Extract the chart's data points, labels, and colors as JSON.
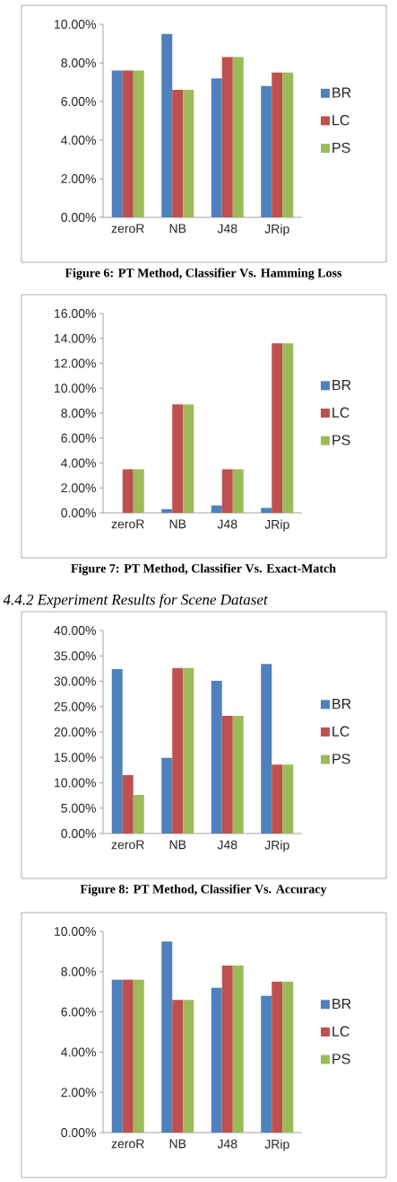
{
  "chart_data": [
    {
      "type": "bar",
      "categories": [
        "zeroR",
        "NB",
        "J48",
        "JRip"
      ],
      "series": [
        {
          "name": "BR",
          "color": "#4f81bd",
          "values": [
            7.6,
            9.5,
            7.2,
            6.8
          ]
        },
        {
          "name": "LC",
          "color": "#c0504d",
          "values": [
            7.6,
            6.6,
            8.3,
            7.5
          ]
        },
        {
          "name": "PS",
          "color": "#9bbb59",
          "values": [
            7.6,
            6.6,
            8.3,
            7.5
          ]
        }
      ],
      "ylim": [
        0,
        10
      ],
      "yticks": [
        {
          "value": 0,
          "label": "0.00%"
        },
        {
          "value": 2,
          "label": "2.00%"
        },
        {
          "value": 4,
          "label": "4.00%"
        },
        {
          "value": 6,
          "label": "6.00%"
        },
        {
          "value": 8,
          "label": "8.00%"
        },
        {
          "value": 10,
          "label": "10.00%"
        }
      ],
      "legend": "right",
      "annotations": [
        "Figure 6: PT Method, Classifier Vs. Hamming Loss"
      ]
    },
    {
      "type": "bar",
      "categories": [
        "zeroR",
        "NB",
        "J48",
        "JRip"
      ],
      "series": [
        {
          "name": "BR",
          "color": "#4f81bd",
          "values": [
            0,
            0.3,
            0.6,
            0.4
          ]
        },
        {
          "name": "LC",
          "color": "#c0504d",
          "values": [
            3.5,
            8.7,
            3.5,
            13.6
          ]
        },
        {
          "name": "PS",
          "color": "#9bbb59",
          "values": [
            3.5,
            8.7,
            3.5,
            13.6
          ]
        }
      ],
      "ylim": [
        0,
        16
      ],
      "yticks": [
        {
          "value": 0,
          "label": "0.00%"
        },
        {
          "value": 2,
          "label": "2.00%"
        },
        {
          "value": 4,
          "label": "4.00%"
        },
        {
          "value": 6,
          "label": "6.00%"
        },
        {
          "value": 8,
          "label": "8.00%"
        },
        {
          "value": 10,
          "label": "10.00%"
        },
        {
          "value": 12,
          "label": "12.00%"
        },
        {
          "value": 14,
          "label": "14.00%"
        },
        {
          "value": 16,
          "label": "16.00%"
        }
      ],
      "legend": "right",
      "annotations": [
        "Figure 7: PT Method, Classifier Vs. Exact-Match"
      ]
    },
    {
      "type": "bar",
      "title": "4.4.2   Experiment Results for Scene Dataset",
      "categories": [
        "zeroR",
        "NB",
        "J48",
        "JRip"
      ],
      "series": [
        {
          "name": "BR",
          "color": "#4f81bd",
          "values": [
            32.4,
            14.9,
            30.1,
            33.4
          ]
        },
        {
          "name": "LC",
          "color": "#c0504d",
          "values": [
            11.5,
            32.6,
            23.2,
            13.6
          ]
        },
        {
          "name": "PS",
          "color": "#9bbb59",
          "values": [
            7.6,
            32.6,
            23.2,
            13.6
          ]
        }
      ],
      "ylim": [
        0,
        40
      ],
      "yticks": [
        {
          "value": 0,
          "label": "0.00%"
        },
        {
          "value": 5,
          "label": "5.00%"
        },
        {
          "value": 10,
          "label": "10.00%"
        },
        {
          "value": 15,
          "label": "15.00%"
        },
        {
          "value": 20,
          "label": "20.00%"
        },
        {
          "value": 25,
          "label": "25.00%"
        },
        {
          "value": 30,
          "label": "30.00%"
        },
        {
          "value": 35,
          "label": "35.00%"
        },
        {
          "value": 40,
          "label": "40.00%"
        }
      ],
      "legend": "right",
      "annotations": [
        "Figure 8: PT Method, Classifier Vs. Accuracy"
      ]
    },
    {
      "type": "bar",
      "categories": [
        "zeroR",
        "NB",
        "J48",
        "JRip"
      ],
      "series": [
        {
          "name": "BR",
          "color": "#4f81bd",
          "values": [
            7.6,
            9.5,
            7.2,
            6.8
          ]
        },
        {
          "name": "LC",
          "color": "#c0504d",
          "values": [
            7.6,
            6.6,
            8.3,
            7.5
          ]
        },
        {
          "name": "PS",
          "color": "#9bbb59",
          "values": [
            7.6,
            6.6,
            8.3,
            7.5
          ]
        }
      ],
      "ylim": [
        0,
        10
      ],
      "yticks": [
        {
          "value": 0,
          "label": "0.00%"
        },
        {
          "value": 2,
          "label": "2.00%"
        },
        {
          "value": 4,
          "label": "4.00%"
        },
        {
          "value": 6,
          "label": "6.00%"
        },
        {
          "value": 8,
          "label": "8.00%"
        },
        {
          "value": 10,
          "label": "10.00%"
        }
      ],
      "legend": "right"
    }
  ]
}
